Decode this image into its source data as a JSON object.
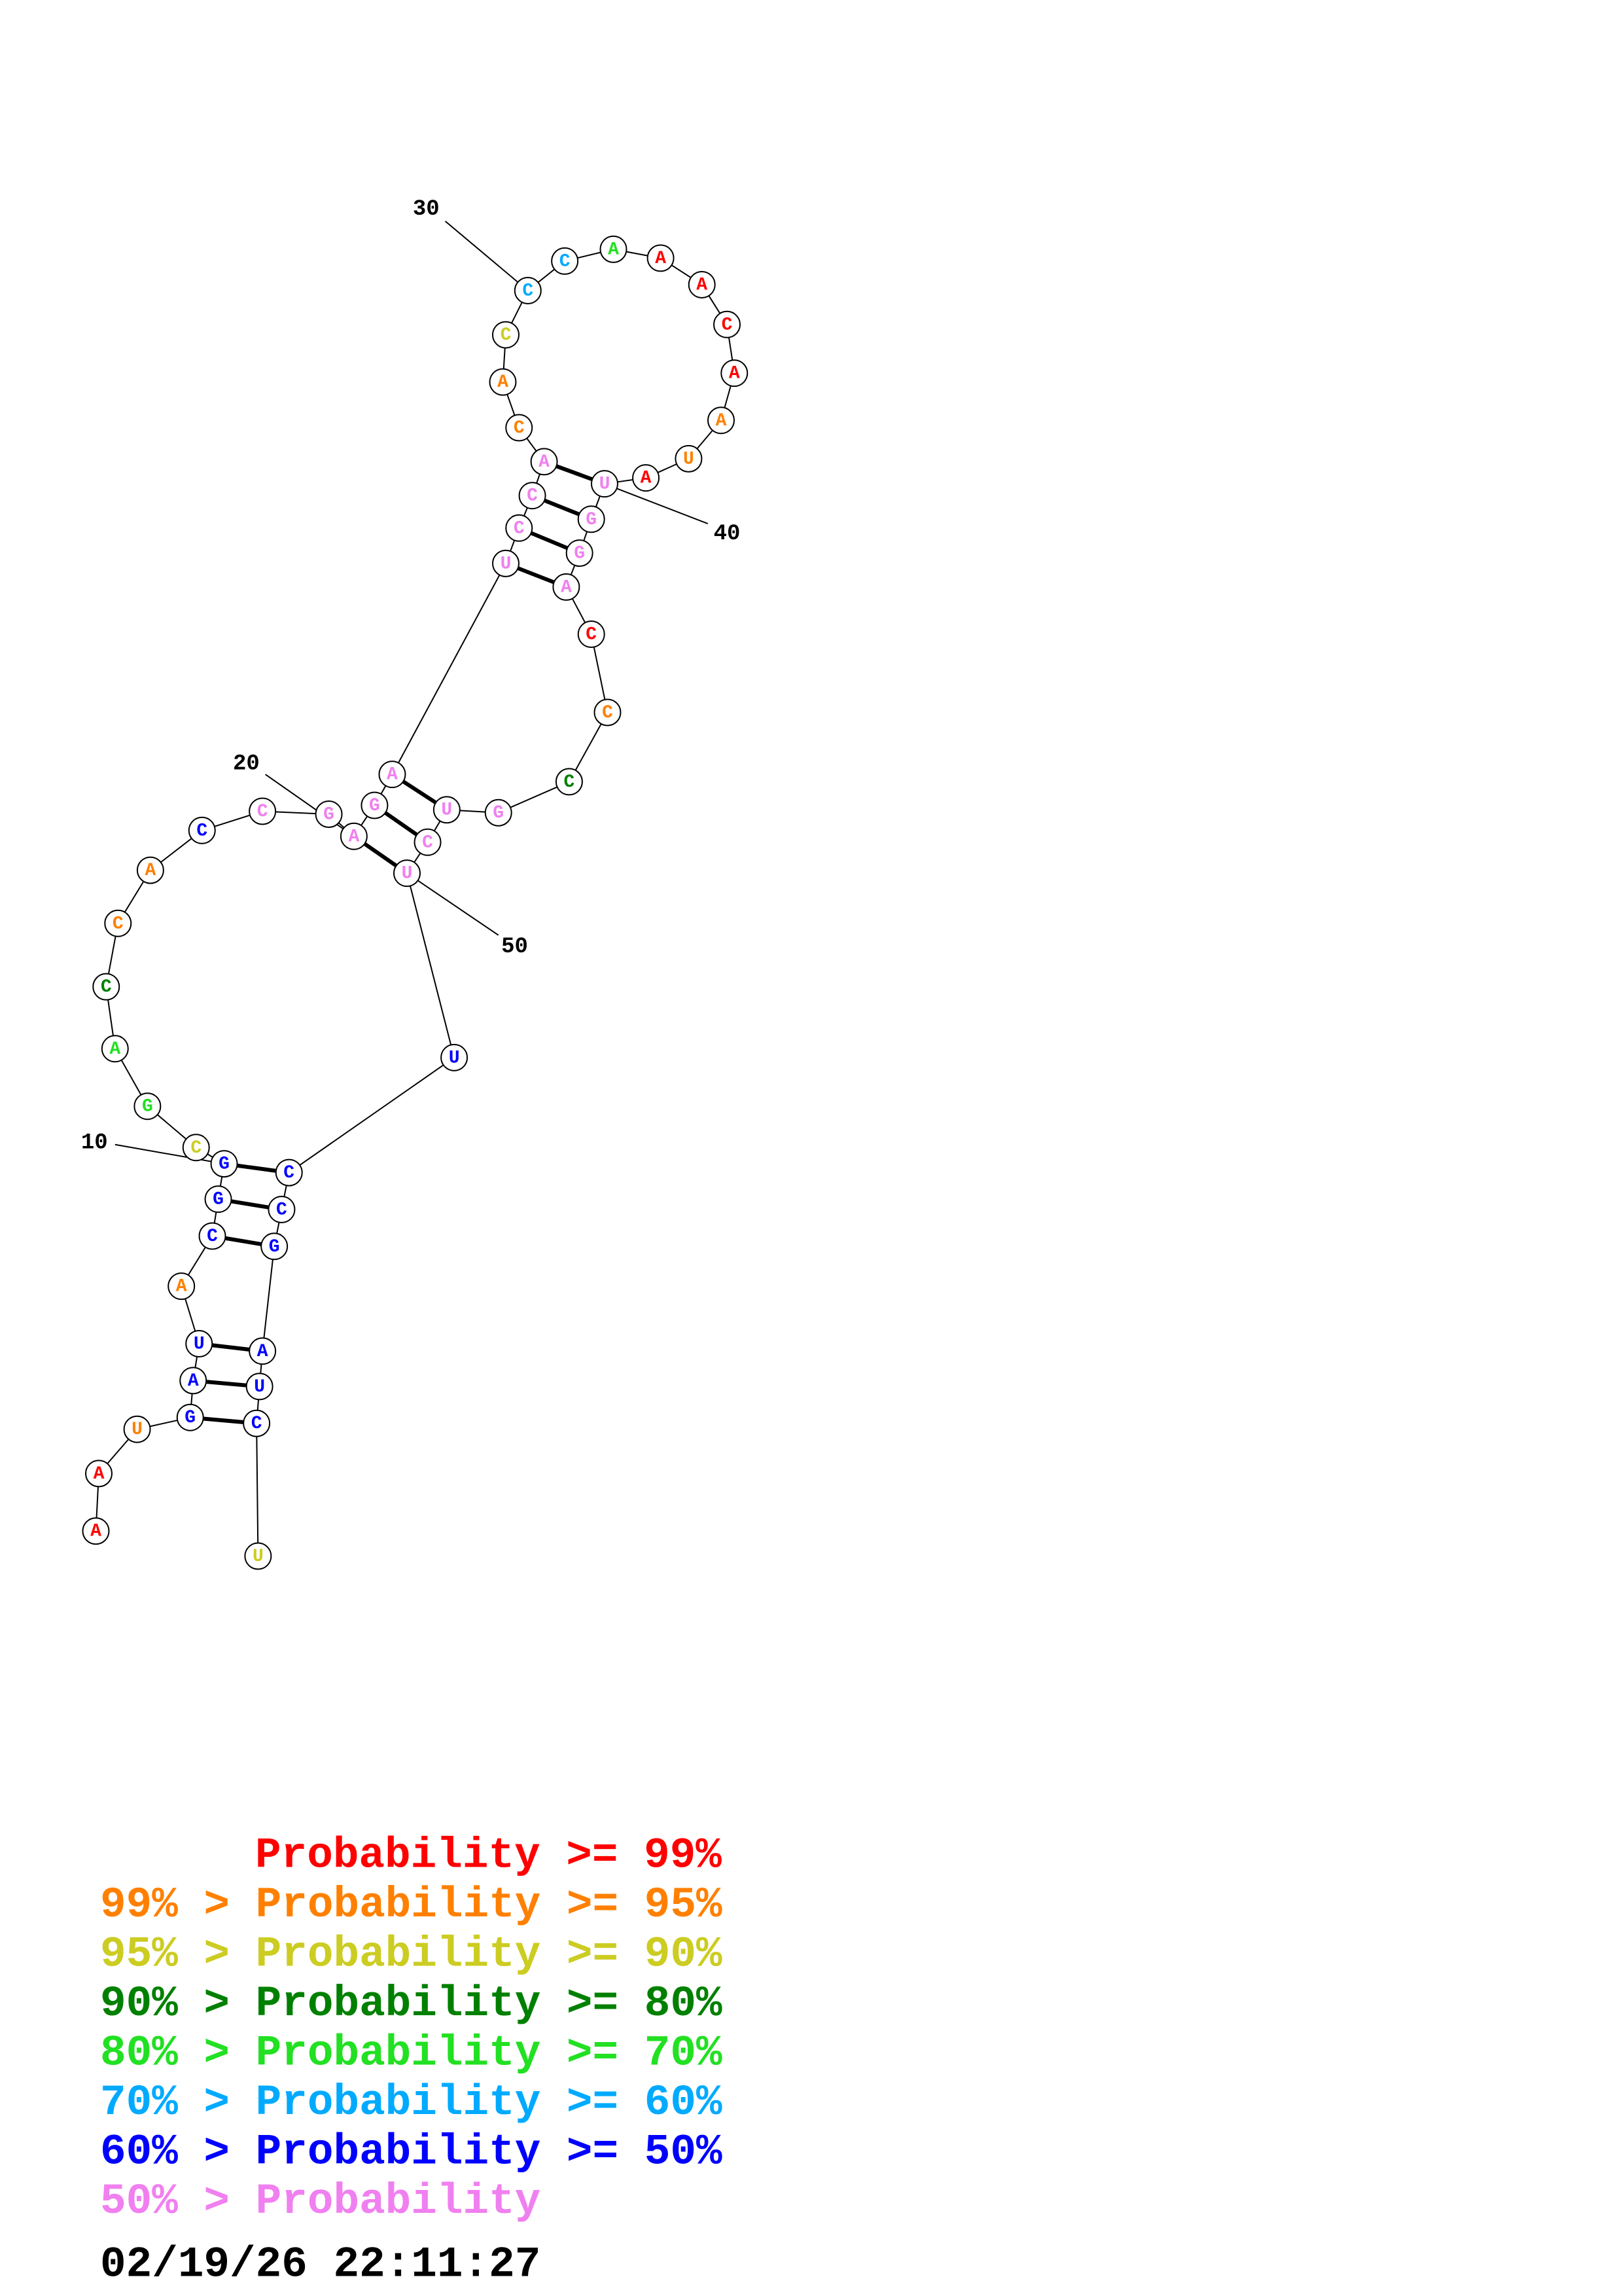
{
  "nodes": [
    {
      "label": "A",
      "color": "#ff0000"
    },
    {
      "label": "A",
      "color": "#ff0000"
    },
    {
      "label": "U",
      "color": "#ff8000"
    },
    {
      "label": "G",
      "color": "#0000ff"
    },
    {
      "label": "A",
      "color": "#0000ff"
    },
    {
      "label": "U",
      "color": "#0000ff"
    },
    {
      "label": "A",
      "color": "#ff8000"
    },
    {
      "label": "C",
      "color": "#0000ff"
    },
    {
      "label": "G",
      "color": "#0000ff"
    },
    {
      "label": "G",
      "color": "#0000ff"
    },
    {
      "label": "C",
      "color": "#cccc22"
    },
    {
      "label": "G",
      "color": "#22e022"
    },
    {
      "label": "A",
      "color": "#22e022"
    },
    {
      "label": "C",
      "color": "#008000"
    },
    {
      "label": "C",
      "color": "#ff8000"
    },
    {
      "label": "A",
      "color": "#ff8000"
    },
    {
      "label": "C",
      "color": "#0000ff"
    },
    {
      "label": "C",
      "color": "#f080f0"
    },
    {
      "label": "G",
      "color": "#f080f0"
    },
    {
      "label": "A",
      "color": "#f080f0"
    },
    {
      "label": "G",
      "color": "#f080f0"
    },
    {
      "label": "A",
      "color": "#f080f0"
    },
    {
      "label": "U",
      "color": "#f080f0"
    },
    {
      "label": "C",
      "color": "#f080f0"
    },
    {
      "label": "C",
      "color": "#f080f0"
    },
    {
      "label": "A",
      "color": "#f080f0"
    },
    {
      "label": "C",
      "color": "#ff8000"
    },
    {
      "label": "A",
      "color": "#ff8000"
    },
    {
      "label": "C",
      "color": "#cccc22"
    },
    {
      "label": "C",
      "color": "#00aaff"
    },
    {
      "label": "C",
      "color": "#00aaff"
    },
    {
      "label": "A",
      "color": "#22e022"
    },
    {
      "label": "A",
      "color": "#ff0000"
    },
    {
      "label": "A",
      "color": "#ff0000"
    },
    {
      "label": "C",
      "color": "#ff0000"
    },
    {
      "label": "A",
      "color": "#ff0000"
    },
    {
      "label": "A",
      "color": "#ff8000"
    },
    {
      "label": "U",
      "color": "#ff8000"
    },
    {
      "label": "A",
      "color": "#ff0000"
    },
    {
      "label": "U",
      "color": "#f080f0"
    },
    {
      "label": "G",
      "color": "#f080f0"
    },
    {
      "label": "G",
      "color": "#f080f0"
    },
    {
      "label": "A",
      "color": "#f080f0"
    },
    {
      "label": "C",
      "color": "#ff0000"
    },
    {
      "label": "C",
      "color": "#ff8000"
    },
    {
      "label": "C",
      "color": "#008000"
    },
    {
      "label": "G",
      "color": "#f080f0"
    },
    {
      "label": "U",
      "color": "#f080f0"
    },
    {
      "label": "C",
      "color": "#f080f0"
    },
    {
      "label": "U",
      "color": "#f080f0"
    },
    {
      "label": "U",
      "color": "#0000ff"
    },
    {
      "label": "C",
      "color": "#0000ff"
    },
    {
      "label": "C",
      "color": "#0000ff"
    },
    {
      "label": "G",
      "color": "#0000ff"
    },
    {
      "label": "A",
      "color": "#0000ff"
    },
    {
      "label": "U",
      "color": "#0000ff"
    },
    {
      "label": "C",
      "color": "#0000ff"
    },
    {
      "label": "U",
      "color": "#cccc22"
    }
  ],
  "position_labels": [
    10,
    20,
    30,
    40,
    50
  ],
  "legend": [
    {
      "text": "Probability >= 99%",
      "color": "#ff0000"
    },
    {
      "text": "99% > Probability >= 95%",
      "color": "#ff8000"
    },
    {
      "text": "95% > Probability >= 90%",
      "color": "#cccc22"
    },
    {
      "text": "90% > Probability >= 80%",
      "color": "#008000"
    },
    {
      "text": "80% > Probability >= 70%",
      "color": "#22e022"
    },
    {
      "text": "70% > Probability >= 60%",
      "color": "#00aaff"
    },
    {
      "text": "60% > Probability >= 50%",
      "color": "#0000ff"
    },
    {
      "text": "50% > Probability",
      "color": "#f080f0"
    }
  ],
  "timestamp": "02/19/26 22:11:27"
}
